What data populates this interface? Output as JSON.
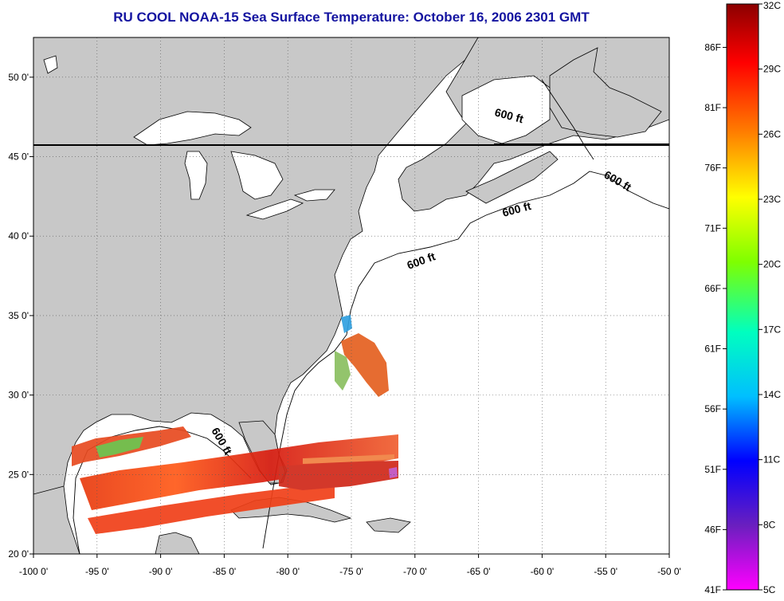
{
  "title": "RU COOL  NOAA-15  Sea Surface Temperature:  October 16, 2006 2301 GMT",
  "map": {
    "lon_range": [
      -100,
      -50
    ],
    "lat_range": [
      20,
      52.5
    ],
    "lon_ticks": [
      "-100 0'",
      "-95 0'",
      "-90 0'",
      "-85 0'",
      "-80 0'",
      "-75 0'",
      "-70 0'",
      "-65 0'",
      "-60 0'",
      "-55 0'",
      "-50 0'"
    ],
    "lat_ticks": [
      "20 0'",
      "25 0'",
      "30 0'",
      "35 0'",
      "40 0'",
      "45 0'",
      "50 0'"
    ],
    "lon_values": [
      -100,
      -95,
      -90,
      -85,
      -80,
      -75,
      -70,
      -65,
      -60,
      -55,
      -50
    ],
    "lat_values": [
      20,
      25,
      30,
      35,
      40,
      45,
      50
    ],
    "isobath_label": "600 ft",
    "land_color": "#c8c8c8",
    "ocean_color": "#ffffff"
  },
  "colorbar": {
    "celsius_labels": [
      "32C",
      "29C",
      "26C",
      "23C",
      "20C",
      "17C",
      "14C",
      "11C",
      "8C",
      "5C"
    ],
    "fahrenheit_labels": [
      "86F",
      "81F",
      "76F",
      "71F",
      "66F",
      "61F",
      "56F",
      "51F",
      "46F",
      "41F"
    ],
    "celsius_values": [
      32,
      29,
      26,
      23,
      20,
      17,
      14,
      11,
      8,
      5
    ],
    "fahrenheit_values": [
      86,
      81,
      76,
      71,
      66,
      61,
      56,
      51,
      46,
      41
    ],
    "gradient": [
      "#8b0000",
      "#ff0000",
      "#ff7f00",
      "#ffff00",
      "#7fff00",
      "#00ffbf",
      "#00bfff",
      "#0000ff",
      "#6a1fbf",
      "#ff00ff"
    ]
  }
}
